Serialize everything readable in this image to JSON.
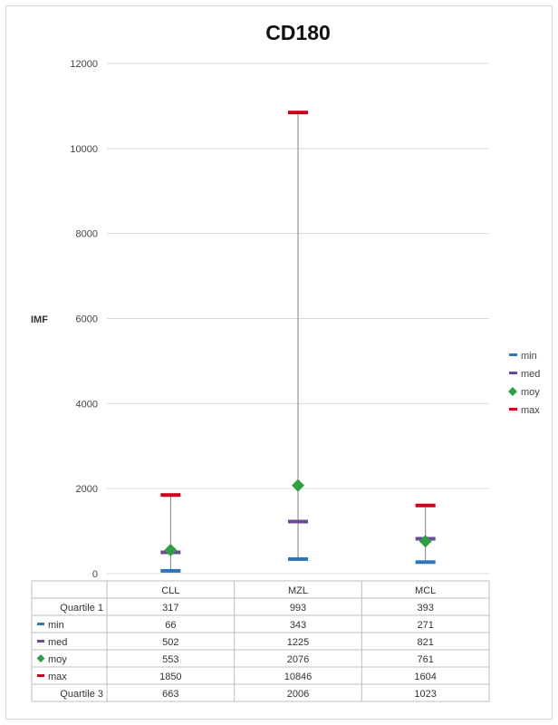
{
  "chart_data": {
    "type": "table",
    "chart_kind": "box-whisker",
    "title": "CD180",
    "ylabel": "IMF",
    "xlabel": "",
    "ylim": [
      0,
      12000
    ],
    "yticks": [
      0,
      2000,
      4000,
      6000,
      8000,
      10000,
      12000
    ],
    "grid": true,
    "legend_position": "right",
    "categories": [
      "CLL",
      "MZL",
      "MCL"
    ],
    "series": [
      {
        "name": "Quartile 1",
        "values": [
          317,
          993,
          393
        ],
        "marker": "none",
        "color": ""
      },
      {
        "name": "min",
        "values": [
          66,
          343,
          271
        ],
        "marker": "dash",
        "color": "#2e75b6"
      },
      {
        "name": "med",
        "values": [
          502,
          1225,
          821
        ],
        "marker": "dash",
        "color": "#6a4c93"
      },
      {
        "name": "moy",
        "values": [
          553,
          2076,
          761
        ],
        "marker": "diamond",
        "color": "#2ea043"
      },
      {
        "name": "max",
        "values": [
          1850,
          10846,
          1604
        ],
        "marker": "dash",
        "color": "#d0021b"
      },
      {
        "name": "Quartile 3",
        "values": [
          663,
          2006,
          1023
        ],
        "marker": "none",
        "color": ""
      }
    ],
    "legend_entries": [
      "min",
      "med",
      "moy",
      "max"
    ]
  }
}
